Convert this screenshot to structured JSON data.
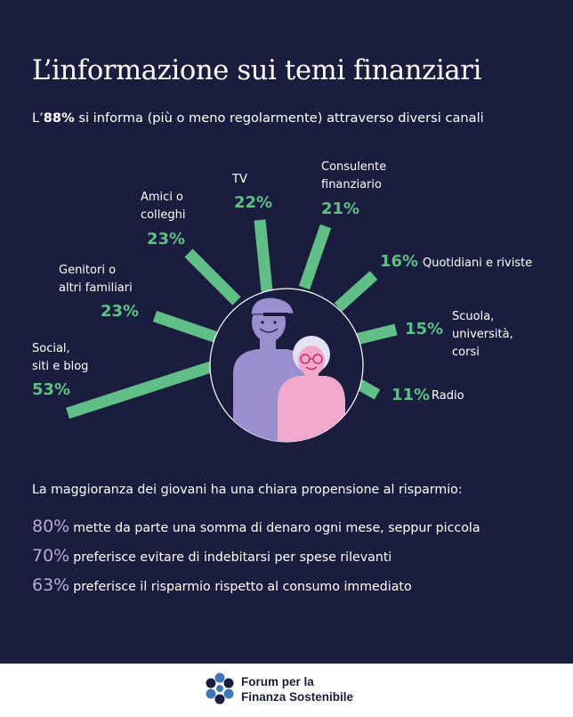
{
  "title": "L’informazione sui temi finanziari",
  "subtitle": {
    "prefix": "L’",
    "value": "88%",
    "suffix": " si informa (più o meno regolarmente) attraverso diversi canali"
  },
  "colors": {
    "background": "#1b1d3f",
    "accent_green": "#5fbf86",
    "accent_lilac": "#b5acdc",
    "pink": "#f0a8cc",
    "purple": "#9b8fd0"
  },
  "channels": [
    {
      "label": "Social,\nsiti e blog",
      "value": "53%"
    },
    {
      "label": "Genitori o\naltri familiari",
      "value": "23%"
    },
    {
      "label": "Amici o\ncolleghi",
      "value": "23%"
    },
    {
      "label": "TV",
      "value": "22%"
    },
    {
      "label": "Consulente\nfinanziario",
      "value": "21%"
    },
    {
      "label": "Quotidiani e riviste",
      "value": "16%"
    },
    {
      "label": "Scuola,\nuniversità,\ncorsi",
      "value": "15%"
    },
    {
      "label": "Radio",
      "value": "11%"
    }
  ],
  "savings": {
    "intro": "La maggioranza dei giovani ha una chiara propensione al risparmio:",
    "items": [
      {
        "value": "80%",
        "text": "mette da parte una somma di denaro ogni mese, seppur piccola"
      },
      {
        "value": "70%",
        "text": "preferisce evitare di indebitarsi per spese rilevanti"
      },
      {
        "value": "63%",
        "text": "preferisce il risparmio rispetto al consumo immediato"
      }
    ]
  },
  "footer": {
    "logo_line1": "Forum per la",
    "logo_line2": "Finanza Sostenibile",
    "logo_icon": "forum-logo-icon"
  }
}
